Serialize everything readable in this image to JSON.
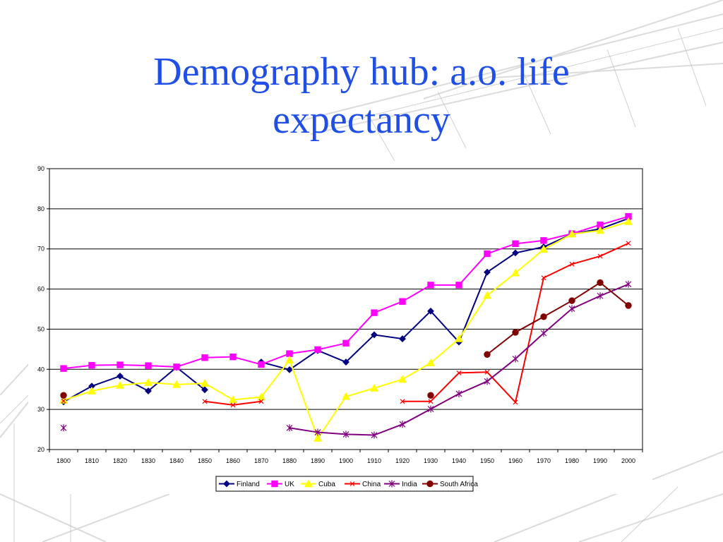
{
  "slide": {
    "title": "Demography hub: a.o. life expectancy"
  },
  "chart_data": {
    "type": "line",
    "title": "",
    "xlabel": "",
    "ylabel": "",
    "x": [
      1800,
      1810,
      1820,
      1830,
      1840,
      1850,
      1860,
      1870,
      1880,
      1890,
      1900,
      1910,
      1920,
      1930,
      1940,
      1950,
      1960,
      1970,
      1980,
      1990,
      2000
    ],
    "ylim": [
      20,
      90
    ],
    "yticks": [
      20,
      30,
      40,
      50,
      60,
      70,
      80,
      90
    ],
    "grid": "horizontal major gridlines",
    "legend_position": "bottom",
    "series": [
      {
        "name": "Finland",
        "color": "#000080",
        "marker": "diamond",
        "values": [
          31.9,
          35.8,
          38.3,
          34.6,
          40.5,
          34.9,
          null,
          41.8,
          39.9,
          44.7,
          41.8,
          48.6,
          47.6,
          54.5,
          46.8,
          64.2,
          69.0,
          70.5,
          73.7,
          75.0,
          77.6
        ]
      },
      {
        "name": "UK",
        "color": "#ff00ff",
        "marker": "square",
        "values": [
          40.2,
          41.0,
          41.1,
          40.9,
          40.6,
          42.9,
          43.1,
          41.2,
          43.9,
          44.9,
          46.5,
          54.1,
          56.9,
          61.0,
          61.0,
          68.8,
          71.3,
          72.1,
          73.8,
          76.0,
          78.1
        ]
      },
      {
        "name": "Cuba",
        "color": "#ffff00",
        "marker": "triangle",
        "values": [
          32.3,
          34.6,
          36.0,
          36.7,
          36.2,
          36.5,
          32.4,
          33.1,
          42.3,
          22.8,
          33.2,
          35.3,
          37.5,
          41.6,
          47.6,
          58.4,
          64.0,
          69.9,
          73.7,
          74.6,
          76.8
        ]
      },
      {
        "name": "China",
        "color": "#ff0000",
        "marker": "x",
        "values": [
          32.1,
          null,
          null,
          null,
          null,
          32.0,
          31.1,
          32.0,
          null,
          null,
          null,
          null,
          32.0,
          32.0,
          39.1,
          39.3,
          31.8,
          62.8,
          66.2,
          68.2,
          71.4
        ]
      },
      {
        "name": "India",
        "color": "#800080",
        "marker": "asterisk",
        "values": [
          25.4,
          null,
          null,
          null,
          null,
          null,
          null,
          null,
          25.4,
          24.3,
          23.8,
          23.6,
          26.3,
          30.1,
          33.9,
          37.0,
          42.6,
          49.0,
          55.1,
          58.3,
          61.2
        ]
      },
      {
        "name": "South Africa",
        "color": "#800000",
        "marker": "circle",
        "values": [
          33.5,
          null,
          null,
          null,
          null,
          null,
          null,
          null,
          null,
          null,
          null,
          null,
          null,
          33.5,
          null,
          43.7,
          49.2,
          53.1,
          57.1,
          61.6,
          55.9
        ]
      }
    ]
  }
}
